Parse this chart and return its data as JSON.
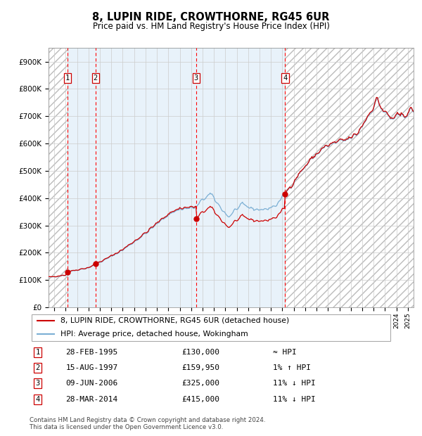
{
  "title": "8, LUPIN RIDE, CROWTHORNE, RG45 6UR",
  "subtitle": "Price paid vs. HM Land Registry's House Price Index (HPI)",
  "ylim": [
    0,
    950000
  ],
  "yticks": [
    0,
    100000,
    200000,
    300000,
    400000,
    500000,
    600000,
    700000,
    800000,
    900000
  ],
  "ytick_labels": [
    "£0",
    "£100K",
    "£200K",
    "£300K",
    "£400K",
    "£500K",
    "£600K",
    "£700K",
    "£800K",
    "£900K"
  ],
  "xlim_start": 1993.5,
  "xlim_end": 2025.5,
  "sale_dates": [
    1995.16,
    1997.62,
    2006.44,
    2014.24
  ],
  "sale_prices": [
    130000,
    159950,
    325000,
    415000
  ],
  "sale_labels": [
    "1",
    "2",
    "3",
    "4"
  ],
  "sale_date_strs": [
    "28-FEB-1995",
    "15-AUG-1997",
    "09-JUN-2006",
    "28-MAR-2014"
  ],
  "sale_price_strs": [
    "£130,000",
    "£159,950",
    "£325,000",
    "£415,000"
  ],
  "sale_hpi_strs": [
    "≈ HPI",
    "1% ↑ HPI",
    "11% ↓ HPI",
    "11% ↓ HPI"
  ],
  "hpi_color": "#7bafd4",
  "sale_line_color": "#cc0000",
  "sale_dot_color": "#cc0000",
  "legend_label_sale": "8, LUPIN RIDE, CROWTHORNE, RG45 6UR (detached house)",
  "legend_label_hpi": "HPI: Average price, detached house, Wokingham",
  "footer": "Contains HM Land Registry data © Crown copyright and database right 2024.\nThis data is licensed under the Open Government Licence v3.0.",
  "background_ownership": "#daeaf7",
  "hatch_edgecolor": "#bbbbbb"
}
